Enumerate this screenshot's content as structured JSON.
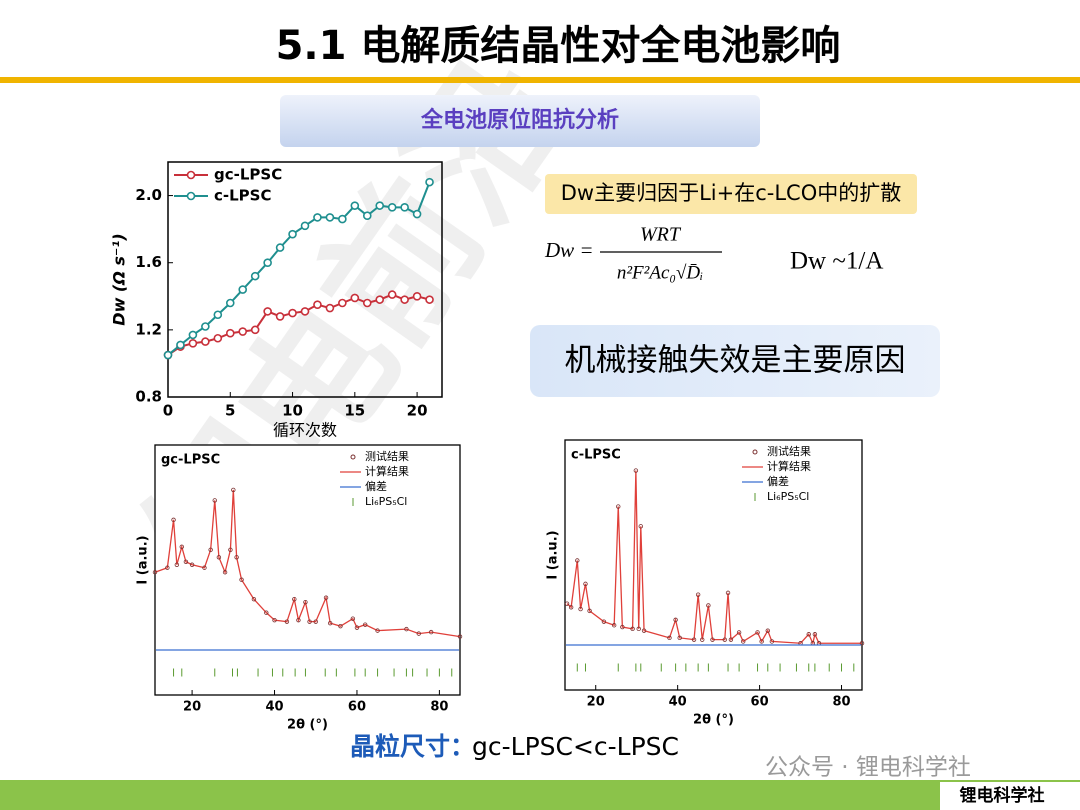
{
  "title": "5.1 电解质结晶性对全电池影响",
  "subtitle": "全电池原位阻抗分析",
  "note": "Dw主要归因于Li+在c-LCO中的扩散",
  "formula_lhs": "Dw =",
  "formula_num": "WRT",
  "formula_den": "n²F²Ac₀√D̄ᵢ",
  "relation": "Dw ~1/A",
  "conclusion": "机械接触失效是主要原因",
  "grain_label": "晶粒尺寸：",
  "grain_text": "gc-LPSC<c-LPSC",
  "watermark": "锂电前沿",
  "wechat": "公众号 · 锂电科学社",
  "brand": "锂电科学社",
  "chart_data": [
    {
      "type": "line",
      "x_label": "循环次数",
      "y_label": "Dw (Ω s⁻¹)",
      "xlim": [
        0,
        22
      ],
      "xticks": [
        0,
        5,
        10,
        15,
        20
      ],
      "ylim": [
        0.8,
        2.2
      ],
      "yticks": [
        0.8,
        1.2,
        1.6,
        {
          "value": 2,
          "label": "2.0"
        }
      ],
      "x": [
        0,
        1,
        2,
        3,
        4,
        5,
        6,
        7,
        8,
        9,
        10,
        11,
        12,
        13,
        14,
        15,
        16,
        17,
        18,
        19,
        20,
        21
      ],
      "series": [
        {
          "name": "gc-LPSC",
          "color": "#c8303a",
          "values": [
            1.05,
            1.1,
            1.12,
            1.13,
            1.15,
            1.18,
            1.19,
            1.2,
            1.31,
            1.28,
            1.3,
            1.31,
            1.35,
            1.33,
            1.36,
            1.39,
            1.36,
            1.38,
            1.41,
            1.38,
            1.4,
            1.38
          ]
        },
        {
          "name": "c-LPSC",
          "color": "#1f8f8f",
          "values": [
            1.05,
            1.11,
            1.17,
            1.22,
            1.29,
            1.36,
            1.44,
            1.52,
            1.6,
            1.69,
            1.77,
            1.82,
            1.87,
            1.87,
            1.86,
            1.94,
            1.88,
            1.94,
            1.93,
            1.93,
            1.89,
            2.08
          ]
        }
      ]
    },
    {
      "type": "xrd",
      "label": "gc-LPSC",
      "x_label": "2θ (°)",
      "y_label": "I (a.u.)",
      "xlim": [
        11,
        85
      ],
      "xticks": [
        20,
        40,
        60,
        80
      ],
      "ylim": [
        -37,
        130
      ],
      "series": [
        {
          "name": "测试结果",
          "color": "#7a3030",
          "x": [
            11,
            14,
            15.5,
            16.3,
            17.5,
            18.5,
            20,
            23,
            24.5,
            25.5,
            26.5,
            28,
            29.3,
            30,
            30.8,
            32,
            35,
            38,
            40,
            43,
            44.8,
            45.8,
            47.5,
            48.5,
            50,
            52.5,
            53.5,
            56,
            59,
            60,
            62,
            65,
            72,
            75,
            78,
            85
          ],
          "values": [
            45,
            48,
            80,
            50,
            62,
            52,
            50,
            48,
            60,
            93,
            55,
            45,
            60,
            100,
            55,
            40,
            27,
            18,
            13,
            12,
            27,
            13,
            25,
            12,
            12,
            28,
            11,
            9,
            14,
            8,
            10,
            6,
            7,
            4,
            5,
            2
          ]
        }
      ],
      "fit_name": "计算结果",
      "fit_color": "#e0403a",
      "diff_name": "偏差",
      "diff_color": "#3a6fd0",
      "reflections": {
        "name": "Li₆PS₅Cl",
        "color": "#5a9a30",
        "x": [
          15.5,
          17.5,
          25.5,
          29.8,
          31,
          36,
          39.5,
          42,
          45,
          47.5,
          52.3,
          55,
          59.5,
          62,
          65,
          69,
          72,
          73.5,
          77,
          80,
          83
        ]
      }
    },
    {
      "type": "xrd",
      "label": "c-LPSC",
      "x_label": "2θ (°)",
      "y_label": "I (a.u.)",
      "xlim": [
        12.5,
        85
      ],
      "xticks": [
        20,
        40,
        60,
        80
      ],
      "ylim": [
        -22,
        117
      ],
      "series": [
        {
          "name": "测试结果",
          "color": "#7a3030",
          "x": [
            13,
            14,
            15.5,
            16.3,
            17.5,
            18.5,
            22,
            24.5,
            25.5,
            26.5,
            29,
            29.8,
            30.5,
            31,
            31.8,
            38,
            39.5,
            40.5,
            44,
            45,
            46,
            47.5,
            48.5,
            51.5,
            52.3,
            53,
            55,
            56,
            59.5,
            60.5,
            62,
            63,
            70,
            72,
            73,
            73.5,
            74.5,
            85
          ],
          "values": [
            26,
            24,
            50,
            23,
            37,
            22,
            16,
            14,
            80,
            13,
            12,
            100,
            12,
            69,
            11,
            7,
            17,
            7,
            6,
            31,
            6,
            25,
            6,
            6,
            32,
            6,
            10,
            5,
            10,
            5,
            11,
            5,
            4,
            9,
            4,
            9,
            4,
            4
          ]
        }
      ],
      "fit_name": "计算结果",
      "fit_color": "#e0403a",
      "diff_name": "偏差",
      "diff_color": "#3a6fd0",
      "reflections": {
        "name": "Li₆PS₅Cl",
        "color": "#5a9a30",
        "x": [
          15.5,
          17.5,
          25.5,
          29.8,
          31,
          36,
          39.5,
          42,
          45,
          47.5,
          52.3,
          55,
          59.5,
          62,
          65,
          69,
          72,
          73.5,
          77,
          80,
          83
        ]
      }
    }
  ]
}
